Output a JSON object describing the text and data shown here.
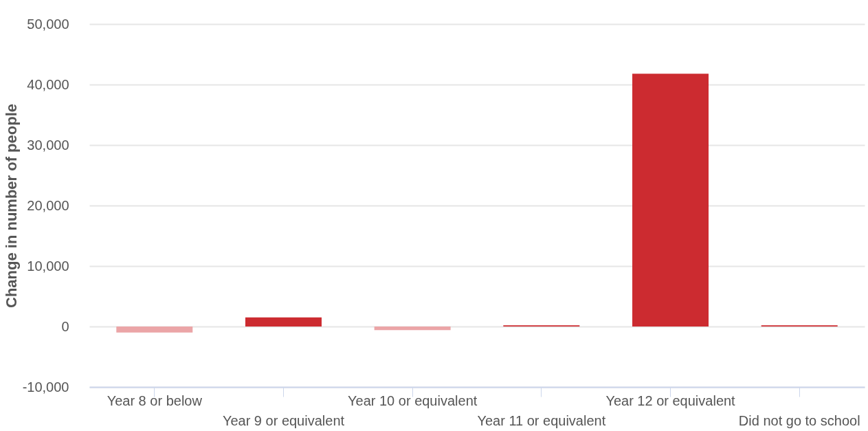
{
  "chart_data": {
    "type": "bar",
    "ylabel": "Change in number of people",
    "categories": [
      "Year 8 or below",
      "Year 9 or equivalent",
      "Year 10 or equivalent",
      "Year 11 or equivalent",
      "Year 12 or equivalent",
      "Did not go to school"
    ],
    "values": [
      -1000,
      1500,
      -600,
      200,
      41800,
      200
    ],
    "colors": [
      "#eba5a7",
      "#cc2b30",
      "#eba5a7",
      "#cc2b30",
      "#cc2b30",
      "#cc2b30"
    ],
    "ylim": [
      -10000,
      50000
    ],
    "yticks": [
      {
        "value": -10000,
        "label": "-10,000"
      },
      0,
      {
        "value": 10000,
        "label": "10,000"
      },
      {
        "value": 20000,
        "label": "20,000"
      },
      {
        "value": 30000,
        "label": "30,000"
      },
      {
        "value": 40000,
        "label": "40,000"
      },
      {
        "value": 50000,
        "label": "50,000"
      }
    ],
    "grid": "y",
    "legend": false
  }
}
